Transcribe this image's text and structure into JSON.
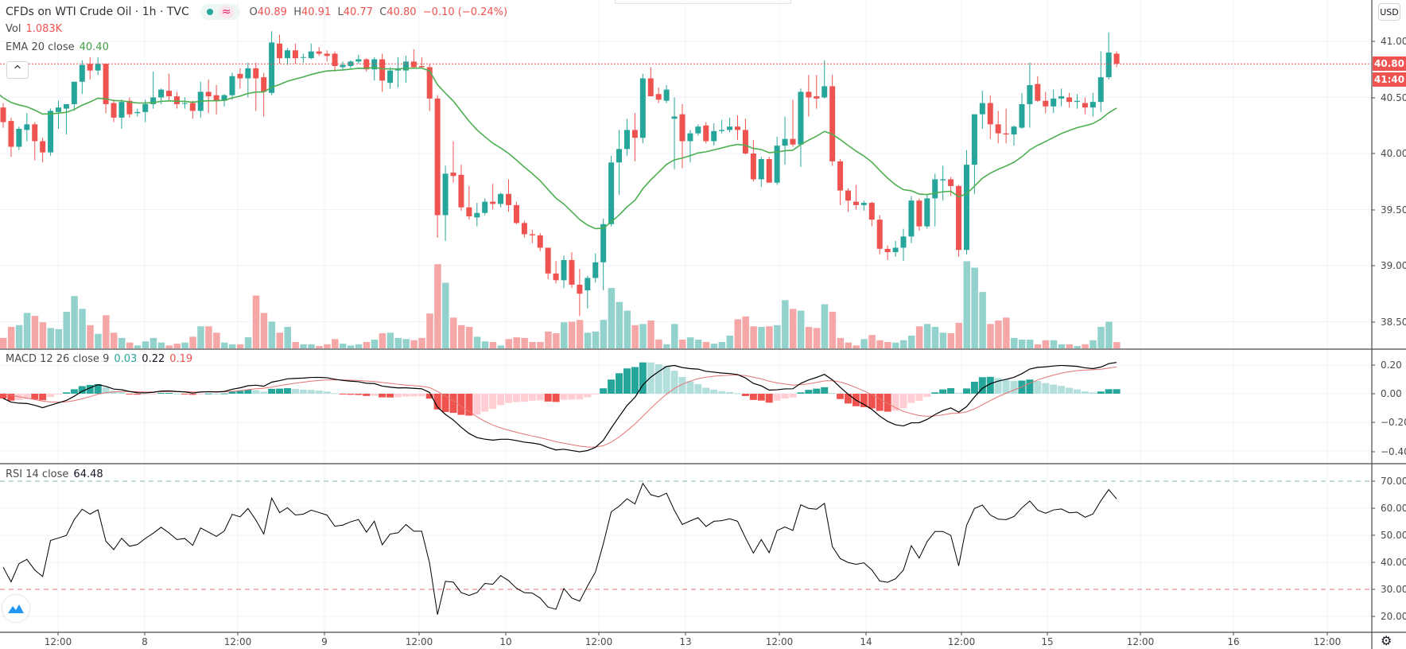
{
  "header": {
    "symbol_title": "CFDs on WTI Crude Oil · 1h · TVC",
    "market_status_icon": "market-open-dot-icon",
    "wave_icon": "wave-icon",
    "ohlc": {
      "o_label": "O",
      "o": "40.89",
      "h_label": "H",
      "h": "40.91",
      "l_label": "L",
      "l": "40.77",
      "c_label": "C",
      "c": "40.80",
      "change": "−0.10 (−0.24%)"
    }
  },
  "indicators": {
    "volume": {
      "label": "Vol",
      "value": "1.083K"
    },
    "ema": {
      "label": "EMA 20 close",
      "value": "40.40"
    },
    "macd": {
      "label": "MACD 12 26 close 9",
      "hist": "0.03",
      "macd": "0.22",
      "signal": "0.19"
    },
    "rsi": {
      "label": "RSI 14 close",
      "value": "64.48"
    }
  },
  "collapse_button": "^",
  "price_axis": {
    "currency": "USD",
    "labels": [
      "41.00",
      "40.50",
      "40.00",
      "39.50",
      "39.00",
      "38.50"
    ],
    "last_price": "40.80",
    "countdown": "41:40"
  },
  "macd_axis": {
    "labels": [
      "0.20",
      "0.00",
      "−0.20",
      "−0.40"
    ]
  },
  "rsi_axis": {
    "labels": [
      "70.00",
      "60.00",
      "50.00",
      "40.00",
      "30.00",
      "20.00"
    ]
  },
  "time_axis": {
    "labels": [
      "12:00",
      "8",
      "12:00",
      "9",
      "12:00",
      "10",
      "12:00",
      "13",
      "12:00",
      "14",
      "12:00",
      "15",
      "12:00",
      "16",
      "12:00"
    ]
  },
  "colors": {
    "up": "#26a69a",
    "down": "#ef5350",
    "ema": "#4caf50",
    "macd": "#000000",
    "signal": "#e57373",
    "rsi": "#000000"
  },
  "chart_data": {
    "type": "candlestick",
    "title": "CFDs on WTI Crude Oil · 1h · TVC",
    "y_range": [
      38.5,
      41.0
    ],
    "candles_ohlc": [
      [
        40.41,
        40.45,
        40.23,
        40.28
      ],
      [
        40.29,
        40.32,
        39.97,
        40.06
      ],
      [
        40.06,
        40.24,
        40.03,
        40.22
      ],
      [
        40.21,
        40.36,
        40.11,
        40.26
      ],
      [
        40.26,
        40.28,
        39.94,
        40.11
      ],
      [
        40.11,
        40.14,
        39.92,
        40.01
      ],
      [
        40.01,
        40.4,
        39.98,
        40.38
      ],
      [
        40.37,
        40.47,
        40.22,
        40.41
      ],
      [
        40.4,
        40.44,
        40.17,
        40.44
      ],
      [
        40.44,
        40.64,
        40.38,
        40.64
      ],
      [
        40.64,
        40.83,
        40.53,
        40.79
      ],
      [
        40.8,
        40.86,
        40.66,
        40.74
      ],
      [
        40.74,
        40.86,
        40.7,
        40.8
      ],
      [
        40.8,
        40.8,
        40.36,
        40.44
      ],
      [
        40.45,
        40.48,
        40.28,
        40.32
      ],
      [
        40.32,
        40.48,
        40.22,
        40.46
      ],
      [
        40.47,
        40.5,
        40.32,
        40.35
      ],
      [
        40.36,
        40.4,
        40.33,
        40.37
      ],
      [
        40.37,
        40.48,
        40.28,
        40.44
      ],
      [
        40.44,
        40.73,
        40.4,
        40.5
      ],
      [
        40.5,
        40.58,
        40.44,
        40.57
      ],
      [
        40.56,
        40.71,
        40.47,
        40.51
      ],
      [
        40.51,
        40.55,
        40.4,
        40.44
      ],
      [
        40.45,
        40.5,
        40.4,
        40.45
      ],
      [
        40.45,
        40.47,
        40.31,
        40.38
      ],
      [
        40.38,
        40.64,
        40.32,
        40.55
      ],
      [
        40.55,
        40.66,
        40.36,
        40.51
      ],
      [
        40.52,
        40.61,
        40.35,
        40.47
      ],
      [
        40.47,
        40.53,
        40.42,
        40.52
      ],
      [
        40.52,
        40.72,
        40.48,
        40.69
      ],
      [
        40.71,
        40.76,
        40.58,
        40.67
      ],
      [
        40.67,
        40.81,
        40.5,
        40.76
      ],
      [
        40.76,
        40.81,
        40.38,
        40.67
      ],
      [
        40.68,
        40.72,
        40.33,
        40.55
      ],
      [
        40.54,
        41.09,
        40.52,
        40.99
      ],
      [
        40.98,
        41.06,
        40.8,
        40.85
      ],
      [
        40.85,
        40.94,
        40.79,
        40.92
      ],
      [
        40.92,
        40.98,
        40.8,
        40.85
      ],
      [
        40.86,
        40.89,
        40.81,
        40.86
      ],
      [
        40.85,
        40.98,
        40.84,
        40.91
      ],
      [
        40.91,
        40.95,
        40.87,
        40.89
      ],
      [
        40.89,
        40.92,
        40.82,
        40.87
      ],
      [
        40.89,
        40.91,
        40.73,
        40.78
      ],
      [
        40.77,
        40.82,
        40.74,
        40.79
      ],
      [
        40.78,
        40.83,
        40.76,
        40.82
      ],
      [
        40.82,
        40.88,
        40.8,
        40.84
      ],
      [
        40.84,
        40.85,
        40.73,
        40.75
      ],
      [
        40.75,
        40.86,
        40.65,
        40.84
      ],
      [
        40.84,
        40.89,
        40.55,
        40.65
      ],
      [
        40.63,
        40.77,
        40.58,
        40.74
      ],
      [
        40.74,
        40.86,
        40.59,
        40.75
      ],
      [
        40.74,
        40.87,
        40.63,
        40.82
      ],
      [
        40.82,
        40.93,
        40.76,
        40.77
      ],
      [
        40.78,
        40.86,
        40.76,
        40.77
      ],
      [
        40.77,
        40.8,
        40.38,
        40.49
      ],
      [
        40.49,
        40.52,
        39.25,
        39.45
      ],
      [
        39.45,
        39.89,
        39.22,
        39.82
      ],
      [
        39.83,
        40.11,
        39.74,
        39.8
      ],
      [
        39.81,
        39.9,
        39.49,
        39.52
      ],
      [
        39.52,
        39.71,
        39.41,
        39.44
      ],
      [
        39.43,
        39.56,
        39.35,
        39.47
      ],
      [
        39.47,
        39.6,
        39.45,
        39.57
      ],
      [
        39.57,
        39.73,
        39.5,
        39.55
      ],
      [
        39.55,
        39.65,
        39.52,
        39.64
      ],
      [
        39.64,
        39.77,
        39.48,
        39.54
      ],
      [
        39.54,
        39.57,
        39.37,
        39.38
      ],
      [
        39.38,
        39.4,
        39.25,
        39.28
      ],
      [
        39.28,
        39.32,
        39.2,
        39.27
      ],
      [
        39.27,
        39.29,
        39.13,
        39.16
      ],
      [
        39.16,
        39.16,
        38.88,
        38.93
      ],
      [
        38.93,
        39.04,
        38.84,
        38.87
      ],
      [
        38.87,
        39.09,
        38.8,
        39.05
      ],
      [
        39.05,
        39.12,
        38.8,
        38.83
      ],
      [
        38.83,
        38.97,
        38.55,
        38.75
      ],
      [
        38.78,
        38.91,
        38.62,
        38.89
      ],
      [
        38.89,
        39.11,
        38.85,
        39.03
      ],
      [
        39.03,
        39.42,
        38.78,
        39.37
      ],
      [
        39.37,
        39.98,
        39.35,
        39.92
      ],
      [
        39.92,
        40.21,
        39.63,
        40.04
      ],
      [
        40.04,
        40.31,
        39.98,
        40.21
      ],
      [
        40.21,
        40.36,
        39.93,
        40.14
      ],
      [
        40.14,
        40.71,
        40.09,
        40.67
      ],
      [
        40.67,
        40.77,
        40.51,
        40.51
      ],
      [
        40.53,
        40.59,
        40.45,
        40.48
      ],
      [
        40.47,
        40.61,
        40.45,
        40.57
      ],
      [
        40.31,
        40.5,
        39.86,
        40.33
      ],
      [
        40.35,
        40.44,
        39.87,
        40.11
      ],
      [
        40.11,
        40.21,
        39.92,
        40.18
      ],
      [
        40.18,
        40.26,
        40.16,
        40.24
      ],
      [
        40.25,
        40.28,
        40.09,
        40.11
      ],
      [
        40.11,
        40.27,
        40.07,
        40.2
      ],
      [
        40.2,
        40.3,
        40.18,
        40.21
      ],
      [
        40.21,
        40.32,
        40.19,
        40.24
      ],
      [
        40.24,
        40.34,
        40.12,
        40.21
      ],
      [
        40.21,
        40.31,
        39.99,
        40.0
      ],
      [
        40.0,
        40.12,
        39.75,
        39.77
      ],
      [
        39.77,
        39.97,
        39.7,
        39.95
      ],
      [
        39.95,
        39.97,
        39.74,
        39.74
      ],
      [
        39.74,
        40.15,
        39.72,
        40.07
      ],
      [
        40.07,
        40.33,
        39.9,
        40.13
      ],
      [
        40.13,
        40.48,
        40.06,
        40.08
      ],
      [
        40.08,
        40.58,
        39.88,
        40.55
      ],
      [
        40.55,
        40.7,
        40.33,
        40.5
      ],
      [
        40.51,
        40.7,
        40.4,
        40.49
      ],
      [
        40.5,
        40.83,
        40.49,
        40.6
      ],
      [
        40.6,
        40.7,
        39.89,
        39.93
      ],
      [
        39.93,
        39.95,
        39.54,
        39.67
      ],
      [
        39.67,
        39.69,
        39.48,
        39.58
      ],
      [
        39.57,
        39.72,
        39.5,
        39.54
      ],
      [
        39.54,
        39.58,
        39.49,
        39.56
      ],
      [
        39.56,
        39.57,
        39.35,
        39.41
      ],
      [
        39.41,
        39.45,
        39.1,
        39.15
      ],
      [
        39.15,
        39.18,
        39.05,
        39.12
      ],
      [
        39.12,
        39.22,
        39.08,
        39.16
      ],
      [
        39.16,
        39.33,
        39.04,
        39.26
      ],
      [
        39.26,
        39.62,
        39.2,
        39.58
      ],
      [
        39.58,
        39.6,
        39.31,
        39.35
      ],
      [
        39.35,
        39.64,
        39.33,
        39.6
      ],
      [
        39.6,
        39.82,
        39.35,
        39.77
      ],
      [
        39.76,
        39.89,
        39.58,
        39.77
      ],
      [
        39.77,
        39.79,
        39.62,
        39.71
      ],
      [
        39.71,
        39.72,
        39.08,
        39.14
      ],
      [
        39.14,
        40.03,
        39.1,
        39.9
      ],
      [
        39.9,
        40.35,
        39.64,
        40.35
      ],
      [
        40.35,
        40.56,
        40.22,
        40.45
      ],
      [
        40.45,
        40.52,
        40.13,
        40.26
      ],
      [
        40.26,
        40.38,
        40.09,
        40.18
      ],
      [
        40.18,
        40.4,
        40.09,
        40.17
      ],
      [
        40.17,
        40.25,
        40.07,
        40.24
      ],
      [
        40.23,
        40.54,
        40.22,
        40.44
      ],
      [
        40.44,
        40.81,
        40.23,
        40.61
      ],
      [
        40.62,
        40.69,
        40.46,
        40.47
      ],
      [
        40.47,
        40.55,
        40.36,
        40.42
      ],
      [
        40.42,
        40.57,
        40.36,
        40.49
      ],
      [
        40.49,
        40.58,
        40.42,
        40.51
      ],
      [
        40.5,
        40.54,
        40.41,
        40.46
      ],
      [
        40.46,
        40.53,
        40.4,
        40.47
      ],
      [
        40.45,
        40.5,
        40.35,
        40.41
      ],
      [
        40.41,
        40.54,
        40.33,
        40.46
      ],
      [
        40.46,
        40.91,
        40.37,
        40.68
      ],
      [
        40.68,
        41.08,
        40.66,
        40.9
      ],
      [
        40.89,
        40.91,
        40.77,
        40.8
      ]
    ],
    "volume_k": [
      1.8,
      3.7,
      4.0,
      6.1,
      5.6,
      4.5,
      3.5,
      3.3,
      6.3,
      9.0,
      6.8,
      4.0,
      2.5,
      5.7,
      2.7,
      1.8,
      1.0,
      0.5,
      1.2,
      1.8,
      1.0,
      0.5,
      0.8,
      1.0,
      2.0,
      3.8,
      3.8,
      2.7,
      1.0,
      0.7,
      0.7,
      1.9,
      9.1,
      6.1,
      4.6,
      2.7,
      3.7,
      1.1,
      0.7,
      0.7,
      0.4,
      0.7,
      1.6,
      0.8,
      0.5,
      0.7,
      1.1,
      1.5,
      2.6,
      2.7,
      1.8,
      1.6,
      1.4,
      1.8,
      6.0,
      14.5,
      11.3,
      5.3,
      4.0,
      3.7,
      2.0,
      1.2,
      1.1,
      0.5,
      1.6,
      1.9,
      1.8,
      1.1,
      1.1,
      2.9,
      2.6,
      4.5,
      4.6,
      4.9,
      2.7,
      2.9,
      4.9,
      10.4,
      8.0,
      6.5,
      4.0,
      4.2,
      4.8,
      1.5,
      0.7,
      4.2,
      1.5,
      1.9,
      1.5,
      1.1,
      0.8,
      1.1,
      2.2,
      5.0,
      5.5,
      3.8,
      3.7,
      3.8,
      4.0,
      8.3,
      6.8,
      6.5,
      3.7,
      3.5,
      7.6,
      6.3,
      1.8,
      1.0,
      0.5,
      1.6,
      2.3,
      1.4,
      1.1,
      1.0,
      1.4,
      2.2,
      3.8,
      4.2,
      3.7,
      2.7,
      2.6,
      4.4,
      15.0,
      13.9,
      9.7,
      4.2,
      4.8,
      5.3,
      1.8,
      1.5,
      1.5,
      0.7,
      1.4,
      1.4,
      0.7,
      0.7,
      0.4,
      0.7,
      1.4,
      3.7,
      4.6,
      1.083
    ],
    "ema_period": 20,
    "ema_seed": 40.52,
    "macd_params": {
      "fast": 12,
      "slow": 26,
      "signal": 9,
      "fast_seed": 40.45,
      "slow_seed": 40.47,
      "signal_seed": 0.01
    },
    "macd_range": [
      -0.45,
      0.25
    ],
    "rsi_params": {
      "period": 14,
      "avg_gain_seed": 0.042,
      "avg_loss_seed": 0.058
    },
    "rsi_range": [
      15,
      75
    ],
    "rsi_bands": [
      70,
      30
    ]
  }
}
